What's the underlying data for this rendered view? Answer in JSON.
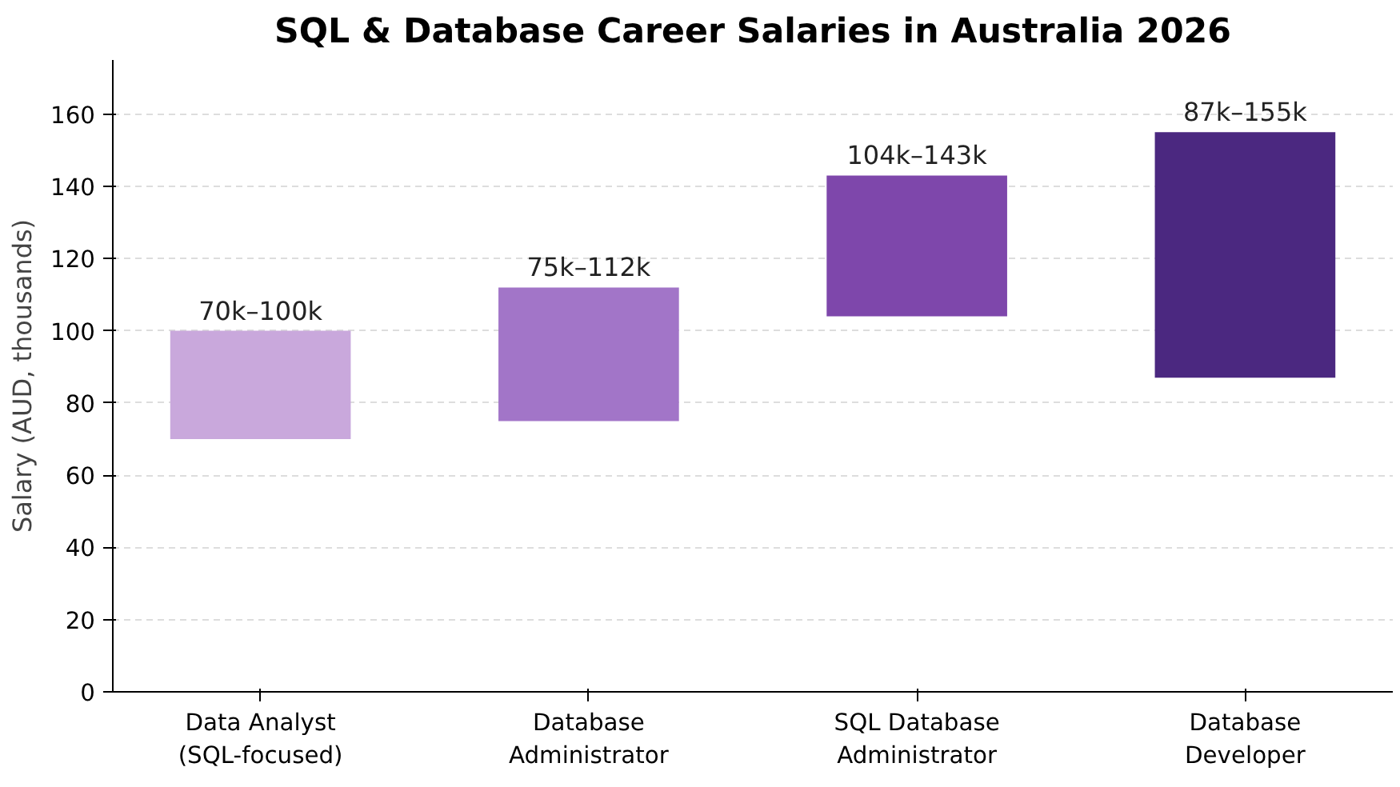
{
  "chart_data": {
    "type": "bar",
    "title": "SQL & Database Career Salaries in Australia 2026",
    "ylabel": "Salary (AUD, thousands)",
    "categories": [
      "Data Analyst\n(SQL-focused)",
      "Database\nAdministrator",
      "SQL Database\nAdministrator",
      "Database\nDeveloper"
    ],
    "base": [
      70,
      75,
      104,
      87
    ],
    "values": [
      30,
      37,
      39,
      68
    ],
    "colors": [
      "#c9a8dc",
      "#a275c8",
      "#7e47ab",
      "#4b2880"
    ],
    "annotations": [
      {
        "text": "70k–100k",
        "x": "Data Analyst\n(SQL-focused)",
        "y": 100
      },
      {
        "text": "75k–112k",
        "x": "Database\nAdministrator",
        "y": 112
      },
      {
        "text": "104k–143k",
        "x": "SQL Database\nAdministrator",
        "y": 143
      },
      {
        "text": "87k–155k",
        "x": "Database\nDeveloper",
        "y": 155
      }
    ],
    "ylim": [
      0,
      175
    ],
    "yticks": [
      0,
      20,
      40,
      60,
      80,
      100,
      120,
      140,
      160
    ],
    "grid": "y"
  }
}
